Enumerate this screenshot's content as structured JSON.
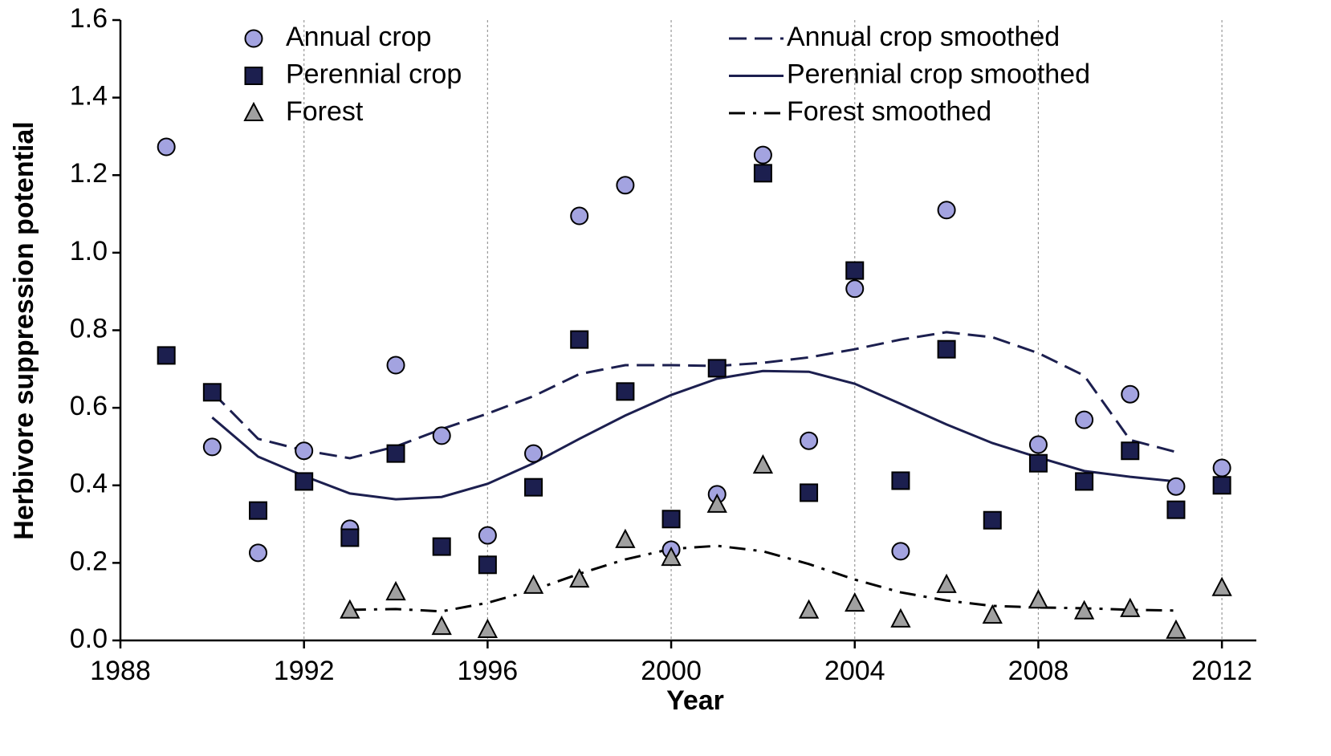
{
  "chart_data": {
    "type": "scatter",
    "x_label": "Year",
    "y_label": "Herbivore suppression potential",
    "x": [
      1989,
      1990,
      1991,
      1992,
      1993,
      1994,
      1995,
      1996,
      1997,
      1998,
      1999,
      2000,
      2001,
      2002,
      2003,
      2004,
      2005,
      2006,
      2007,
      2008,
      2009,
      2010,
      2011,
      2012
    ],
    "xlim": [
      1988,
      2012.75
    ],
    "xticks": [
      1988,
      1992,
      1996,
      2000,
      2004,
      2008,
      2012
    ],
    "ylim": [
      0,
      1.6
    ],
    "yticks": [
      {
        "value": 0,
        "label": "0.0"
      },
      {
        "value": 0.2,
        "label": "0.2"
      },
      {
        "value": 0.4,
        "label": "0.4"
      },
      {
        "value": 0.6,
        "label": "0.6"
      },
      {
        "value": 0.8,
        "label": "0.8"
      },
      {
        "value": 1,
        "label": "1.0"
      },
      {
        "value": 1.2,
        "label": "1.2"
      },
      {
        "value": 1.4,
        "label": "1.4"
      },
      {
        "value": 1.6,
        "label": "1.6"
      }
    ],
    "grid": "x",
    "series": [
      {
        "name": "Annual crop",
        "color": "#a3a3e0",
        "marker": "circle",
        "values": [
          1.273,
          0.499,
          0.226,
          0.489,
          0.288,
          0.71,
          0.528,
          0.271,
          0.482,
          1.095,
          1.174,
          0.234,
          0.377,
          1.252,
          0.515,
          0.907,
          0.23,
          1.11,
          null,
          0.505,
          0.569,
          0.635,
          0.397,
          0.445
        ]
      },
      {
        "name": "Perennial crop",
        "color": "#1c1f4f",
        "marker": "square",
        "values": [
          0.735,
          0.64,
          0.335,
          0.41,
          0.265,
          0.482,
          0.242,
          0.195,
          0.395,
          0.776,
          0.642,
          0.313,
          0.702,
          1.205,
          0.381,
          0.954,
          0.412,
          0.751,
          0.31,
          0.457,
          0.41,
          0.489,
          0.337,
          0.4
        ]
      },
      {
        "name": "Forest",
        "color": "#a0a0a0",
        "marker": "triangle",
        "values": [
          null,
          null,
          null,
          null,
          0.077,
          0.124,
          0.035,
          0.027,
          0.141,
          0.157,
          0.259,
          0.213,
          0.35,
          0.451,
          0.077,
          0.095,
          0.054,
          0.143,
          0.064,
          0.103,
          0.075,
          0.081,
          0.025,
          0.135
        ]
      },
      {
        "name": "Annual crop smoothed",
        "color": "#1c1f4f",
        "line": "dash",
        "values": [
          null,
          0.64,
          0.52,
          0.49,
          0.47,
          0.5,
          0.545,
          0.585,
          0.63,
          0.687,
          0.71,
          0.71,
          0.708,
          0.716,
          0.73,
          0.751,
          0.776,
          0.795,
          0.782,
          0.741,
          0.683,
          0.517,
          0.486,
          null
        ]
      },
      {
        "name": "Perennial crop smoothed",
        "color": "#1c1f4f",
        "line": "solid",
        "values": [
          null,
          0.575,
          0.474,
          0.424,
          0.379,
          0.364,
          0.37,
          0.404,
          0.457,
          0.52,
          0.58,
          0.633,
          0.675,
          0.695,
          0.693,
          0.662,
          0.61,
          0.557,
          0.509,
          0.472,
          0.437,
          0.422,
          0.41,
          null
        ]
      },
      {
        "name": "Forest smoothed",
        "color": "#000000",
        "line": "dashdot",
        "values": [
          null,
          null,
          null,
          null,
          0.079,
          0.081,
          0.075,
          0.097,
          0.13,
          0.172,
          0.209,
          0.236,
          0.244,
          0.23,
          0.197,
          0.157,
          0.124,
          0.103,
          0.089,
          0.085,
          0.083,
          0.079,
          0.077,
          null
        ]
      }
    ]
  }
}
